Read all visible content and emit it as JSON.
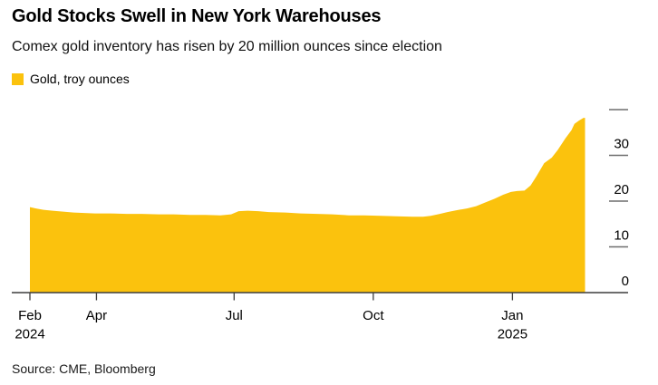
{
  "chart_data": {
    "type": "area",
    "title": "Gold Stocks Swell in New York Warehouses",
    "subtitle": "Comex gold inventory has risen by 20 million ounces since election",
    "source": "Source: CME, Bloomberg",
    "legend": [
      {
        "label": "Gold, troy ounces",
        "color": "#FBC20D"
      }
    ],
    "series_name": "Gold, troy ounces",
    "unit": "million troy ounces",
    "color": "#FBC20D",
    "axis_color": "#3d3d3d",
    "tick_dash_color": "#6f6f6f",
    "grid": "none",
    "y_axis_side": "right",
    "ylim": [
      0,
      40
    ],
    "x_domain": [
      "2024-02-17",
      "2025-02-18"
    ],
    "x_ticks": [
      {
        "date": "2024-02-17",
        "label": "Feb",
        "year_label": "2024"
      },
      {
        "date": "2024-04-01",
        "label": "Apr"
      },
      {
        "date": "2024-07-01",
        "label": "Jul"
      },
      {
        "date": "2024-10-01",
        "label": "Oct"
      },
      {
        "date": "2025-01-01",
        "label": "Jan",
        "year_label": "2025"
      }
    ],
    "y_ticks": [
      {
        "value": 0,
        "label": "0"
      },
      {
        "value": 10,
        "label": "10"
      },
      {
        "value": 20,
        "label": "20"
      },
      {
        "value": 30,
        "label": "30"
      },
      {
        "value": 40,
        "label": ""
      }
    ],
    "points": [
      [
        "2024-02-17",
        18.7
      ],
      [
        "2024-02-21",
        18.4
      ],
      [
        "2024-02-26",
        18.1
      ],
      [
        "2024-03-03",
        17.9
      ],
      [
        "2024-03-10",
        17.7
      ],
      [
        "2024-03-17",
        17.5
      ],
      [
        "2024-03-24",
        17.4
      ],
      [
        "2024-03-31",
        17.3
      ],
      [
        "2024-04-10",
        17.3
      ],
      [
        "2024-04-21",
        17.2
      ],
      [
        "2024-05-01",
        17.2
      ],
      [
        "2024-05-12",
        17.1
      ],
      [
        "2024-05-22",
        17.1
      ],
      [
        "2024-06-02",
        17.0
      ],
      [
        "2024-06-12",
        17.0
      ],
      [
        "2024-06-22",
        16.9
      ],
      [
        "2024-06-29",
        17.1
      ],
      [
        "2024-07-04",
        17.8
      ],
      [
        "2024-07-10",
        17.9
      ],
      [
        "2024-07-17",
        17.8
      ],
      [
        "2024-07-24",
        17.6
      ],
      [
        "2024-08-04",
        17.5
      ],
      [
        "2024-08-14",
        17.3
      ],
      [
        "2024-08-25",
        17.2
      ],
      [
        "2024-09-04",
        17.1
      ],
      [
        "2024-09-15",
        16.9
      ],
      [
        "2024-09-25",
        16.9
      ],
      [
        "2024-10-06",
        16.8
      ],
      [
        "2024-10-16",
        16.7
      ],
      [
        "2024-10-27",
        16.6
      ],
      [
        "2024-11-03",
        16.6
      ],
      [
        "2024-11-08",
        16.8
      ],
      [
        "2024-11-14",
        17.2
      ],
      [
        "2024-11-19",
        17.6
      ],
      [
        "2024-11-25",
        18.0
      ],
      [
        "2024-12-02",
        18.4
      ],
      [
        "2024-12-08",
        18.9
      ],
      [
        "2024-12-14",
        19.7
      ],
      [
        "2024-12-20",
        20.5
      ],
      [
        "2024-12-26",
        21.4
      ],
      [
        "2024-12-31",
        22.0
      ],
      [
        "2025-01-04",
        22.2
      ],
      [
        "2025-01-09",
        22.3
      ],
      [
        "2025-01-13",
        23.4
      ],
      [
        "2025-01-17",
        25.5
      ],
      [
        "2025-01-22",
        28.3
      ],
      [
        "2025-01-27",
        29.5
      ],
      [
        "2025-01-31",
        31.2
      ],
      [
        "2025-02-05",
        33.7
      ],
      [
        "2025-02-09",
        35.5
      ],
      [
        "2025-02-11",
        36.9
      ],
      [
        "2025-02-14",
        37.6
      ],
      [
        "2025-02-17",
        38.2
      ],
      [
        "2025-02-18",
        38.2
      ]
    ]
  }
}
